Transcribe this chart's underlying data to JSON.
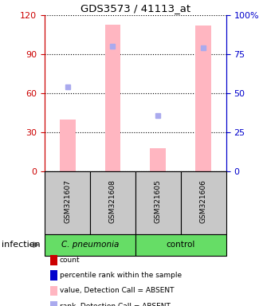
{
  "title": "GDS3573 / 41113_at",
  "samples": [
    "GSM321607",
    "GSM321608",
    "GSM321605",
    "GSM321606"
  ],
  "bar_color_absent": "#FFB6C1",
  "rank_absent_color": "#AAAAEE",
  "left_axis_color": "#CC0000",
  "right_axis_color": "#0000CC",
  "sample_box_color": "#C8C8C8",
  "green_color": "#66DD66",
  "values_absent": [
    40,
    113,
    18,
    112
  ],
  "rank_absent": [
    54,
    80,
    36,
    79
  ],
  "ylim_left": [
    0,
    120
  ],
  "ylim_right": [
    0,
    100
  ],
  "yticks_left": [
    0,
    30,
    60,
    90,
    120
  ],
  "yticks_right": [
    0,
    25,
    50,
    75,
    100
  ],
  "ytick_labels_right": [
    "0",
    "25",
    "50",
    "75",
    "100%"
  ],
  "legend_items": [
    {
      "label": "count",
      "color": "#CC0000"
    },
    {
      "label": "percentile rank within the sample",
      "color": "#0000CC"
    },
    {
      "label": "value, Detection Call = ABSENT",
      "color": "#FFB6C1"
    },
    {
      "label": "rank, Detection Call = ABSENT",
      "color": "#AAAAEE"
    }
  ]
}
